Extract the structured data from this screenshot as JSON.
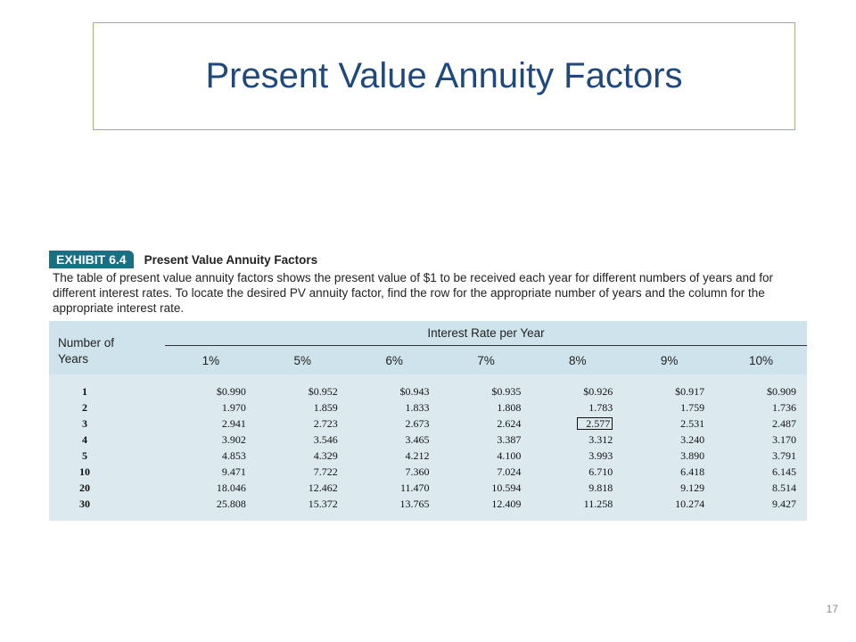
{
  "title": "Present Value Annuity Factors",
  "exhibit": {
    "label": "EXHIBIT 6.4",
    "title": "Present Value Annuity Factors",
    "description": "The table of present value annuity factors shows the present value of $1 to be received each year for different numbers of years and for different interest rates. To locate the desired PV annuity factor, find the row for the appropriate number of years and the column for the appropriate interest rate."
  },
  "table": {
    "row_header": "Number of Years",
    "group_header": "Interest Rate per Year",
    "columns": [
      "1%",
      "5%",
      "6%",
      "7%",
      "8%",
      "9%",
      "10%"
    ],
    "rows": [
      [
        "1",
        "$0.990",
        "$0.952",
        "$0.943",
        "$0.935",
        "$0.926",
        "$0.917",
        "$0.909"
      ],
      [
        "2",
        "1.970",
        "1.859",
        "1.833",
        "1.808",
        "1.783",
        "1.759",
        "1.736"
      ],
      [
        "3",
        "2.941",
        "2.723",
        "2.673",
        "2.624",
        "2.577",
        "2.531",
        "2.487"
      ],
      [
        "4",
        "3.902",
        "3.546",
        "3.465",
        "3.387",
        "3.312",
        "3.240",
        "3.170"
      ],
      [
        "5",
        "4.853",
        "4.329",
        "4.212",
        "4.100",
        "3.993",
        "3.890",
        "3.791"
      ],
      [
        "10",
        "9.471",
        "7.722",
        "7.360",
        "7.024",
        "6.710",
        "6.418",
        "6.145"
      ],
      [
        "20",
        "18.046",
        "12.462",
        "11.470",
        "10.594",
        "9.818",
        "9.129",
        "8.514"
      ],
      [
        "30",
        "25.808",
        "15.372",
        "13.765",
        "12.409",
        "11.258",
        "10.274",
        "9.427"
      ]
    ]
  },
  "slide_number": "17"
}
